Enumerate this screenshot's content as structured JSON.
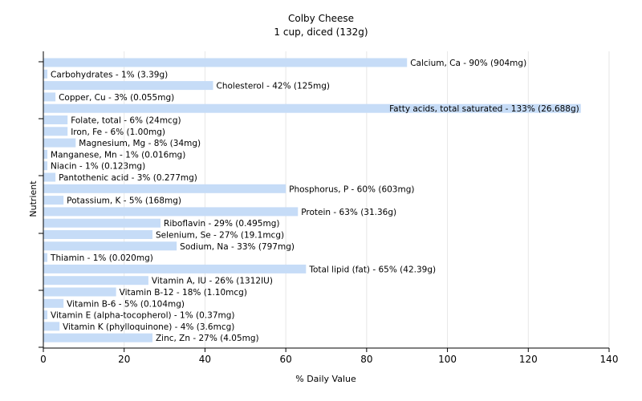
{
  "chart_data": {
    "type": "bar",
    "orientation": "horizontal",
    "title": "Colby Cheese",
    "subtitle": "1 cup, diced (132g)",
    "xlabel": "% Daily Value",
    "ylabel": "Nutrient",
    "xlim": [
      0,
      140
    ],
    "xticks": [
      0,
      20,
      40,
      60,
      80,
      100,
      120,
      140
    ],
    "grid": true,
    "bar_color": "#c6dcf7",
    "grid_color": "#e6e6e6",
    "categories": [
      "Calcium, Ca",
      "Carbohydrates",
      "Cholesterol",
      "Copper, Cu",
      "Fatty acids, total saturated",
      "Folate, total",
      "Iron, Fe",
      "Magnesium, Mg",
      "Manganese, Mn",
      "Niacin",
      "Pantothenic acid",
      "Phosphorus, P",
      "Potassium, K",
      "Protein",
      "Riboflavin",
      "Selenium, Se",
      "Sodium, Na",
      "Thiamin",
      "Total lipid (fat)",
      "Vitamin A, IU",
      "Vitamin B-12",
      "Vitamin B-6",
      "Vitamin E (alpha-tocopherol)",
      "Vitamin K (phylloquinone)",
      "Zinc, Zn"
    ],
    "values": [
      90,
      1,
      42,
      3,
      133,
      6,
      6,
      8,
      1,
      1,
      3,
      60,
      5,
      63,
      29,
      27,
      33,
      1,
      65,
      26,
      18,
      5,
      1,
      4,
      27
    ],
    "labels": [
      "Calcium, Ca - 90% (904mg)",
      "Carbohydrates - 1% (3.39g)",
      "Cholesterol - 42% (125mg)",
      "Copper, Cu - 3% (0.055mg)",
      "Fatty acids, total saturated - 133% (26.688g)",
      "Folate, total - 6% (24mcg)",
      "Iron, Fe - 6% (1.00mg)",
      "Magnesium, Mg - 8% (34mg)",
      "Manganese, Mn - 1% (0.016mg)",
      "Niacin - 1% (0.123mg)",
      "Pantothenic acid - 3% (0.277mg)",
      "Phosphorus, P - 60% (603mg)",
      "Potassium, K - 5% (168mg)",
      "Protein - 63% (31.36g)",
      "Riboflavin - 29% (0.495mg)",
      "Selenium, Se - 27% (19.1mcg)",
      "Sodium, Na - 33% (797mg)",
      "Thiamin - 1% (0.020mg)",
      "Total lipid (fat) - 65% (42.39g)",
      "Vitamin A, IU - 26% (1312IU)",
      "Vitamin B-12 - 18% (1.10mcg)",
      "Vitamin B-6 - 5% (0.104mg)",
      "Vitamin E (alpha-tocopherol) - 1% (0.37mg)",
      "Vitamin K (phylloquinone) - 4% (3.6mcg)",
      "Zinc, Zn - 27% (4.05mg)"
    ]
  }
}
